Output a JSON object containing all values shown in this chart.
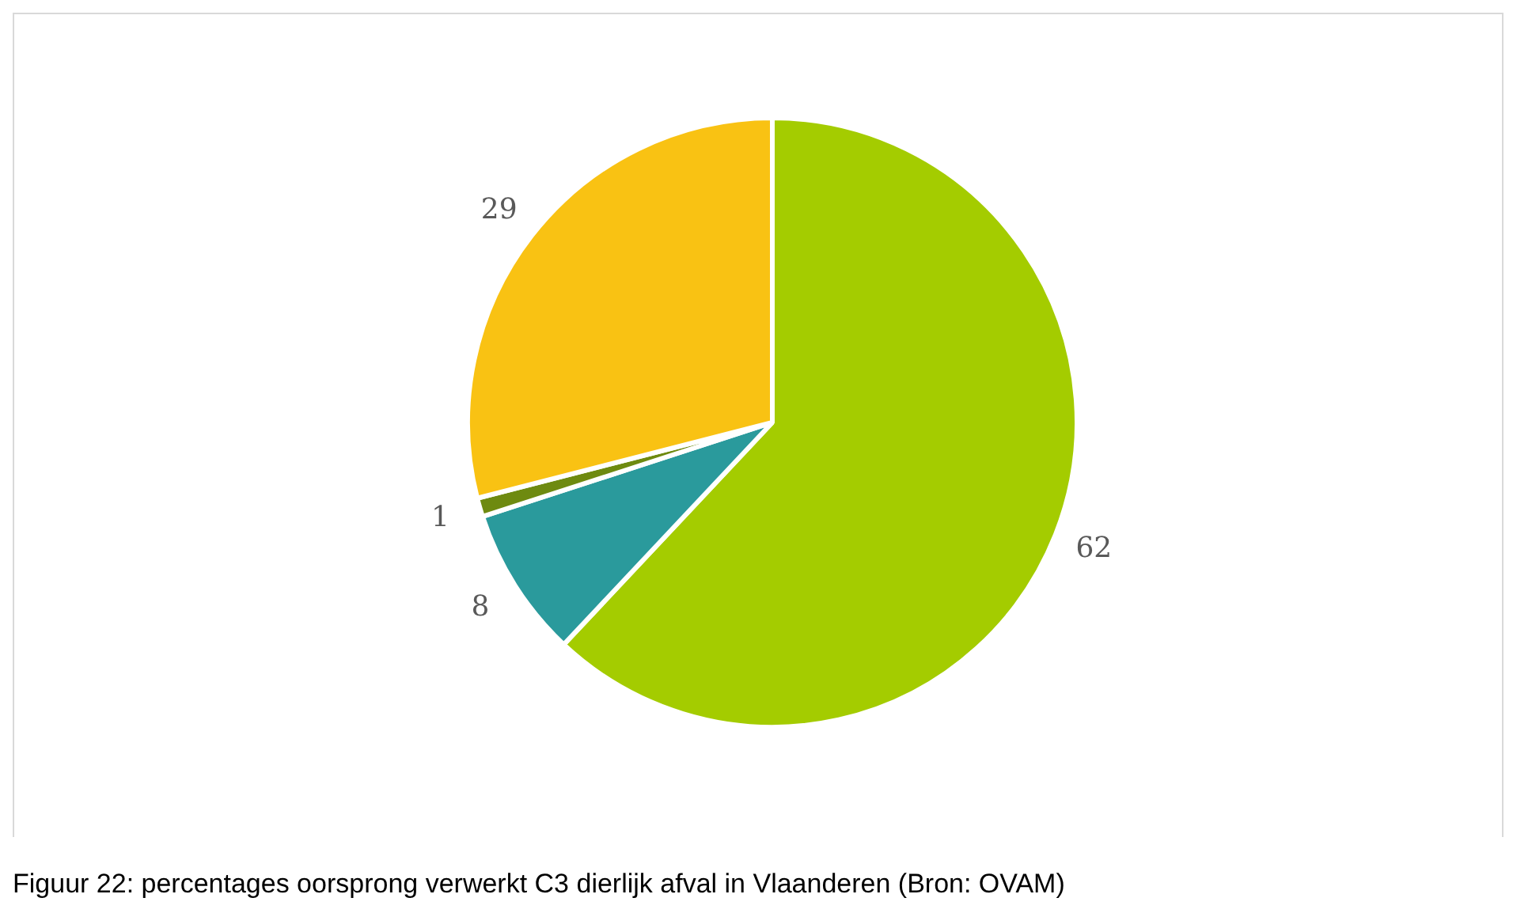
{
  "chart_data": {
    "type": "pie",
    "categories": [
      null,
      null,
      null,
      null
    ],
    "values": [
      62,
      8,
      1,
      29
    ],
    "colors": [
      "#a4cc00",
      "#2a9a9c",
      "#6e8a10",
      "#f9c213"
    ],
    "data_labels": true,
    "legend": false,
    "annotations": [
      "Figuur 22: percentages oorsprong verwerkt C3 dierlijk afval in Vlaanderen (Bron: OVAM)"
    ]
  }
}
